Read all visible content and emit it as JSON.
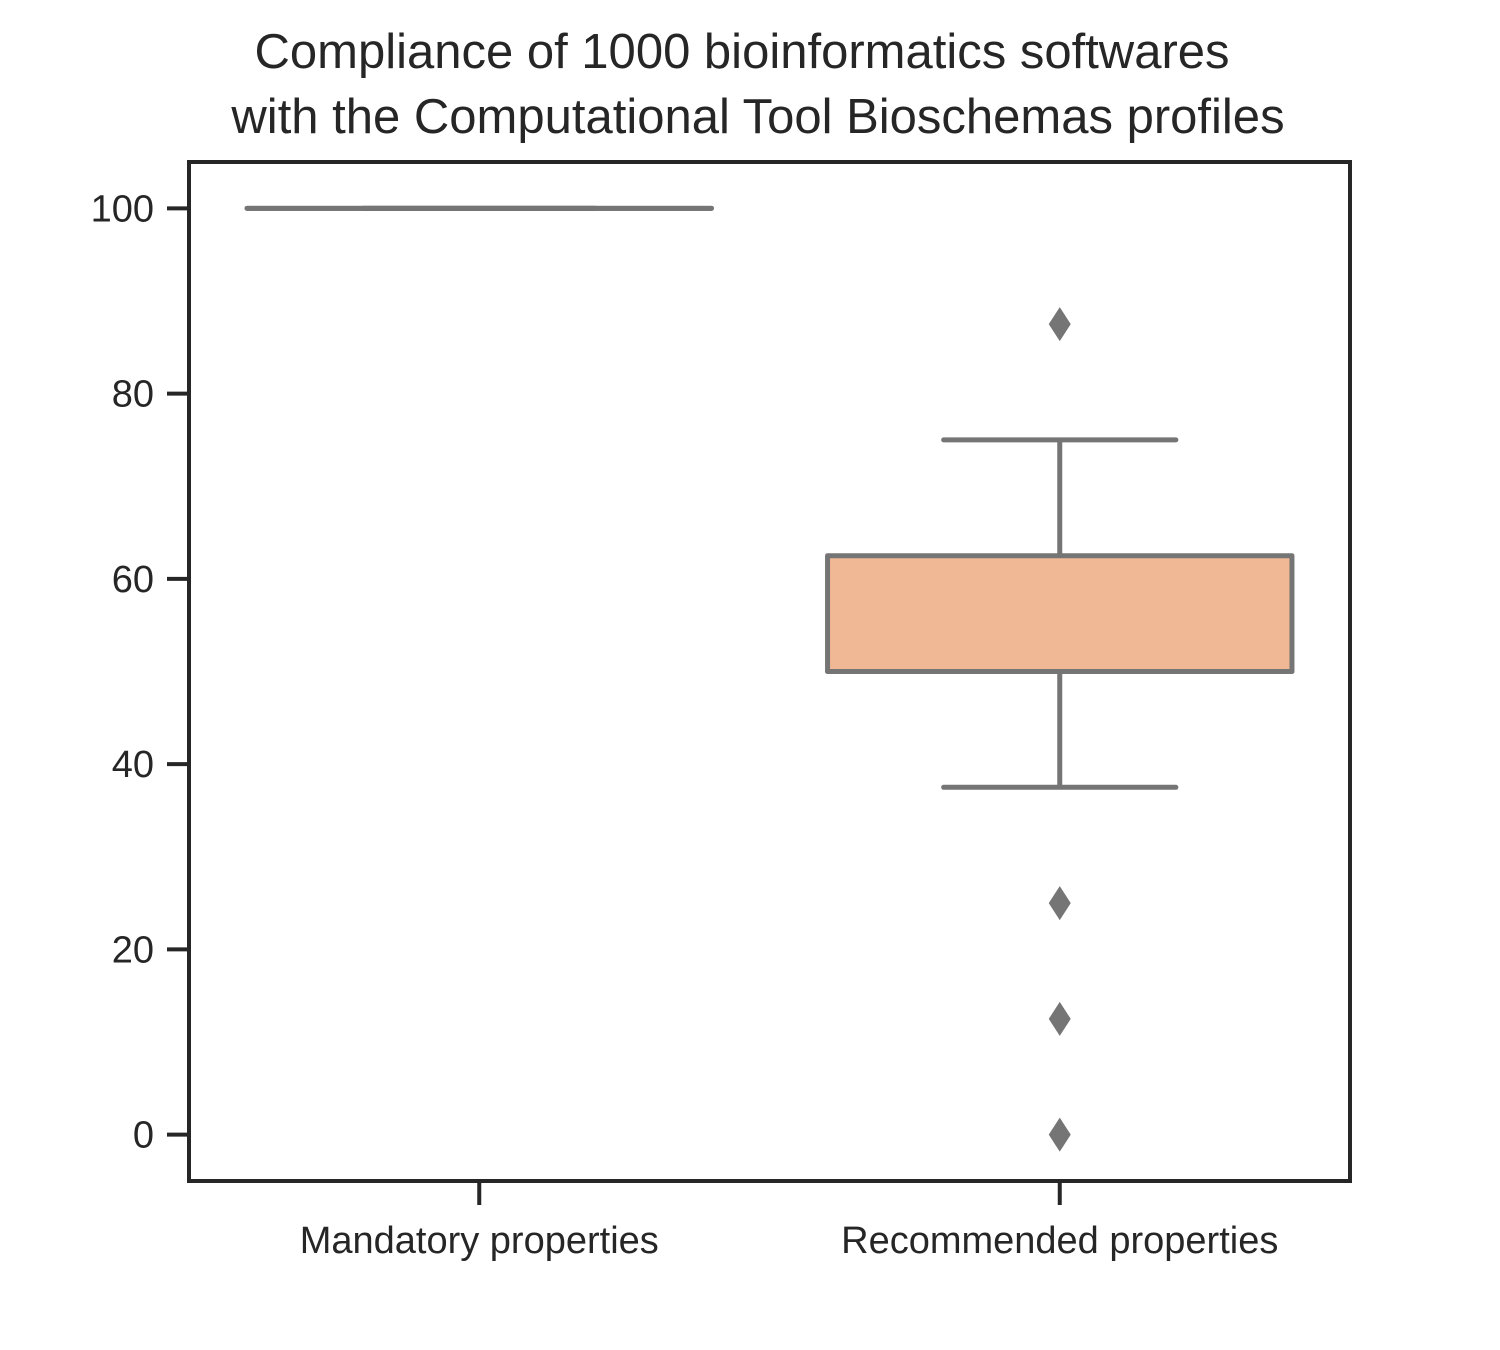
{
  "chart_data": {
    "type": "box",
    "title_lines": [
      "Compliance of 1000 bioinformatics softwares",
      "with the Computational Tool Bioschemas profiles"
    ],
    "xlabel": "",
    "ylabel": "",
    "categories": [
      "Mandatory properties",
      "Recommended properties"
    ],
    "y_ticks": [
      0,
      20,
      40,
      60,
      80,
      100
    ],
    "ylim": [
      -5,
      105
    ],
    "boxes": [
      {
        "category": "Mandatory properties",
        "whisker_low": 100,
        "q1": 100,
        "median": 100,
        "q3": 100,
        "whisker_high": 100,
        "outliers": [],
        "fill": "#f0b894"
      },
      {
        "category": "Recommended properties",
        "whisker_low": 37.5,
        "q1": 50,
        "median": 50,
        "q3": 62.5,
        "whisker_high": 75,
        "outliers": [
          87.5,
          25,
          12.5,
          0
        ],
        "fill": "#f0b894"
      }
    ],
    "line_color": "#757575",
    "outlier_color": "#757575",
    "axis_color": "#262626",
    "grid": false,
    "legend": "none"
  }
}
